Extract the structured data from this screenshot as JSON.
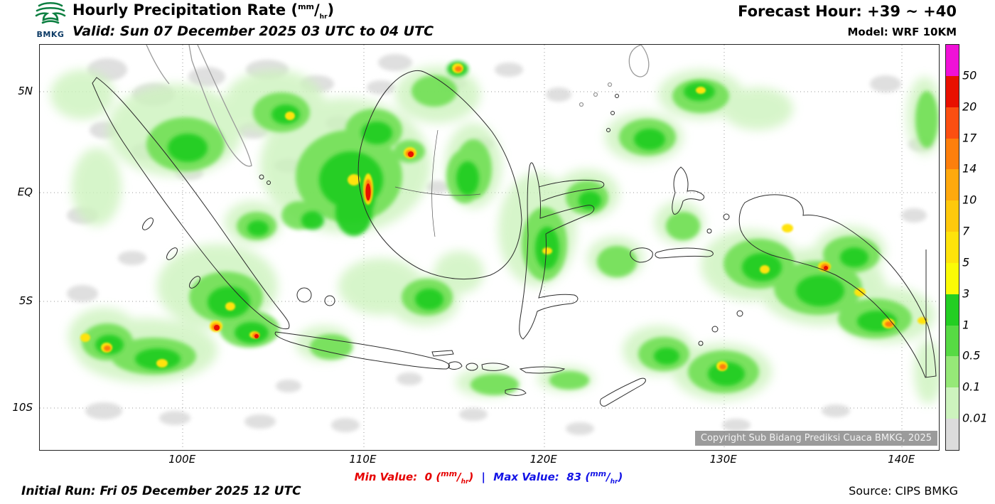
{
  "header": {
    "logo": "BMKG",
    "title": "Hourly Precipitation Rate",
    "open_paren": "(",
    "close_paren": ")",
    "valid_line": "Valid: Sun 07 December 2025 03 UTC to 04 UTC",
    "forecast_hour": "Forecast Hour: +39 ~ +40",
    "model": "Model: WRF 10KM"
  },
  "units": {
    "num": "mm",
    "slash": "/",
    "den": "hr"
  },
  "map": {
    "lat_labels": [
      {
        "text": "5N",
        "pct": 11.6
      },
      {
        "text": "EQ",
        "pct": 36.5
      },
      {
        "text": "5S",
        "pct": 63.3
      },
      {
        "text": "10S",
        "pct": 89.6
      }
    ],
    "lon_labels": [
      {
        "text": "100E",
        "pct": 15.9
      },
      {
        "text": "110E",
        "pct": 36.0
      },
      {
        "text": "120E",
        "pct": 56.1
      },
      {
        "text": "130E",
        "pct": 76.1
      },
      {
        "text": "140E",
        "pct": 95.9
      }
    ],
    "copyright": "Copyright Sub Bidang Prediksi Cuaca BMKG, 2025"
  },
  "legend": {
    "labels": [
      "50",
      "20",
      "17",
      "14",
      "10",
      "7",
      "5",
      "3",
      "1",
      "0.5",
      "0.1",
      "0.01"
    ],
    "colors": [
      "#f011d7",
      "#e81000",
      "#fb4f11",
      "#fd7f0c",
      "#ffa90e",
      "#ffc90c",
      "#ffe30b",
      "#fbfb06",
      "#23ce22",
      "#57da44",
      "#96e878",
      "#cdf3be",
      "#dcdcdc"
    ]
  },
  "footer": {
    "min_label": "Min Value:",
    "min_value": "0",
    "separator": "|",
    "max_label": "Max Value:",
    "max_value": "83",
    "initial_run": "Initial Run: Fri 05 December 2025 12 UTC",
    "source": "Source: CIPS BMKG",
    "min_color": "#e60000",
    "max_color": "#1414e6"
  }
}
